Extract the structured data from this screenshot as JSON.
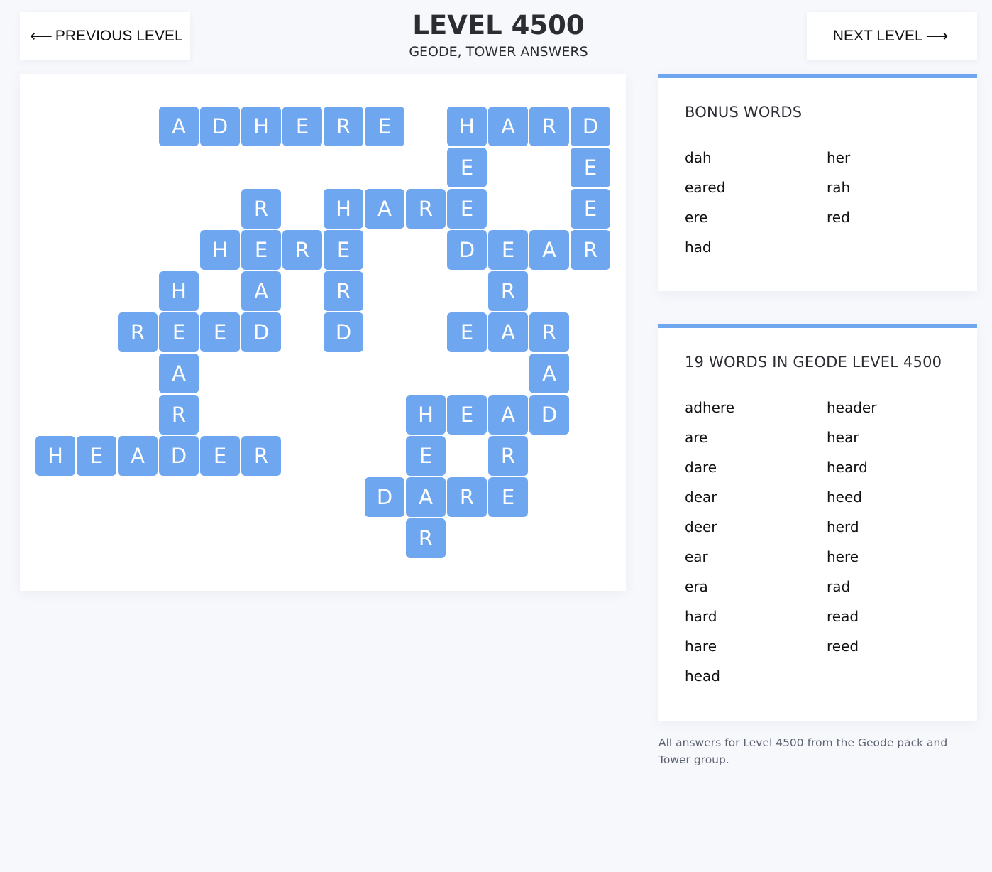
{
  "nav": {
    "prev_label": "PREVIOUS LEVEL",
    "next_label": "NEXT LEVEL"
  },
  "header": {
    "title": "LEVEL 4500",
    "subtitle": "GEODE, TOWER ANSWERS"
  },
  "colors": {
    "tile": "#6ea6f0",
    "accent": "#6ea6f0"
  },
  "board": {
    "grid": [
      "...ADHERE.HARD",
      "..........E..E",
      ".....R.HARE..E",
      "....HERE..DEAR",
      "...H.A.R...R..",
      "..REED.D..EAR.",
      "...A........A.",
      "...R.....HEAD.",
      "HEADER...E.R..",
      "........DARE..",
      ".........R...."
    ]
  },
  "bonus": {
    "title": "BONUS WORDS",
    "words": [
      "dah",
      "eared",
      "ere",
      "had",
      "her",
      "rah",
      "red"
    ]
  },
  "answers": {
    "title": "19 WORDS IN GEODE LEVEL 4500",
    "words": [
      "adhere",
      "are",
      "dare",
      "dear",
      "deer",
      "ear",
      "era",
      "hard",
      "hare",
      "head",
      "header",
      "hear",
      "heard",
      "heed",
      "herd",
      "here",
      "rad",
      "read",
      "reed"
    ]
  },
  "footer": "All answers for Level 4500 from the Geode pack and Tower group."
}
